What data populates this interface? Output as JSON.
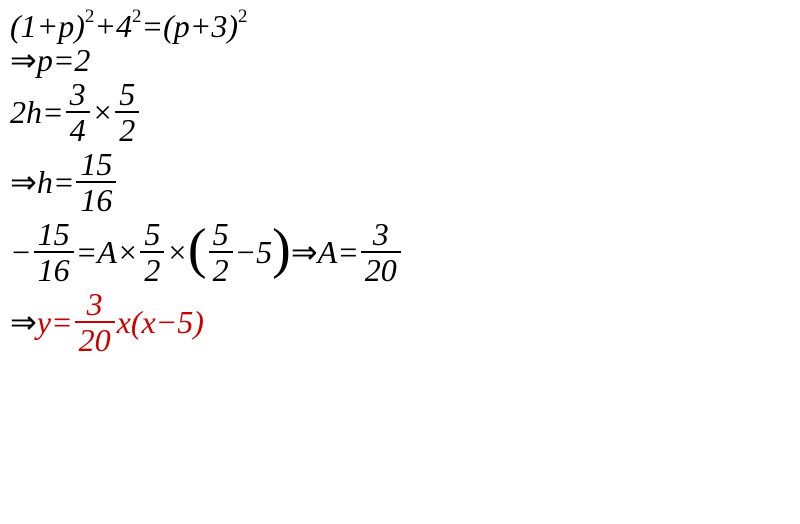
{
  "lines": {
    "l1": {
      "a": "(1+",
      "p1": "p",
      "b": ")",
      "e1": "2",
      "c": "+4",
      "e2": "2",
      "d": "=(",
      "p2": "p",
      "f": "+3)",
      "e3": "2"
    },
    "l2": {
      "arrow": "⇒",
      "p": "p",
      "eq": "=2"
    },
    "l3": {
      "a": "2",
      "h": "h",
      "eq": "=",
      "f1n": "3",
      "f1d": "4",
      "times": "×",
      "f2n": "5",
      "f2d": "2"
    },
    "l4": {
      "arrow": "⇒",
      "h": "h",
      "eq": "=",
      "fn": "15",
      "fd": "16"
    },
    "l5": {
      "minus": "−",
      "f1n": "15",
      "f1d": "16",
      "eq1": "=",
      "A": "A",
      "times1": "×",
      "f2n": "5",
      "f2d": "2",
      "times2": "×",
      "lp": "(",
      "f3n": "5",
      "f3d": "2",
      "minus2": "−5",
      "rp": ")",
      "sp": " ",
      "arrow": "⇒",
      "A2": "A",
      "eq2": "=",
      "f4n": "3",
      "f4d": "20"
    },
    "l6": {
      "arrow": "⇒",
      "y": "y",
      "eq": "=",
      "fn": "3",
      "fd": "20",
      "x1": "x",
      "lp": "(",
      "x2": "x",
      "minus": "−5)",
      "rp": ""
    }
  },
  "colors": {
    "text": "#000000",
    "accent": "#cc0000",
    "background": "#ffffff"
  },
  "typography": {
    "family": "Times New Roman, serif",
    "size_pt": 24,
    "style": "italic"
  }
}
